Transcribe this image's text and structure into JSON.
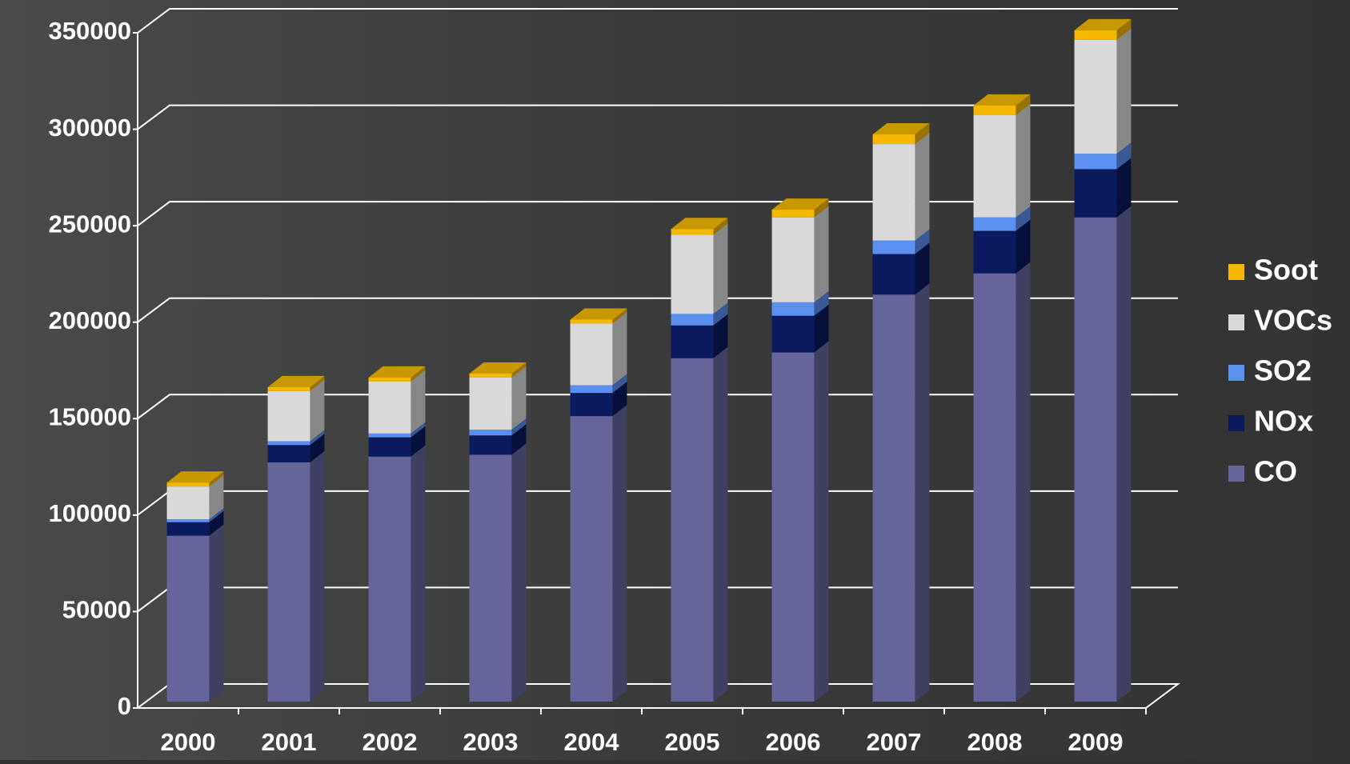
{
  "chart_data": {
    "type": "bar3d-stacked",
    "categories": [
      "2000",
      "2001",
      "2002",
      "2003",
      "2004",
      "2005",
      "2006",
      "2007",
      "2008",
      "2009"
    ],
    "series": [
      {
        "name": "CO",
        "color": "#65659c",
        "values": [
          86000,
          124000,
          127000,
          128000,
          148000,
          178000,
          181000,
          211000,
          222000,
          251000
        ]
      },
      {
        "name": "NOx",
        "color": "#0b1a5e",
        "values": [
          7000,
          9000,
          10000,
          10000,
          12000,
          17000,
          19000,
          21000,
          22000,
          25000
        ]
      },
      {
        "name": "SO2",
        "color": "#5b8ff0",
        "values": [
          1500,
          2000,
          2000,
          3000,
          4000,
          6000,
          7000,
          7000,
          7000,
          8000
        ]
      },
      {
        "name": "VOCs",
        "color": "#d9d9d9",
        "values": [
          17000,
          26000,
          27000,
          27000,
          32000,
          41000,
          44000,
          50000,
          53000,
          59000
        ]
      },
      {
        "name": "Soot",
        "color": "#f5b800",
        "values": [
          2000,
          2000,
          2000,
          2000,
          2000,
          3000,
          4000,
          5000,
          5000,
          5000
        ]
      }
    ],
    "ylim": [
      0,
      350000
    ],
    "yticks": [
      0,
      50000,
      100000,
      150000,
      200000,
      250000,
      300000,
      350000
    ],
    "grid": true,
    "legend": "right"
  }
}
